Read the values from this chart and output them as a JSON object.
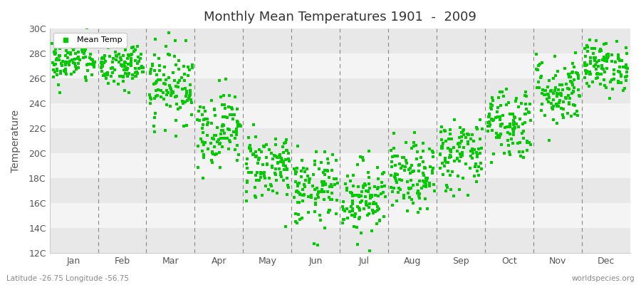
{
  "title": "Monthly Mean Temperatures 1901  -  2009",
  "ylabel": "Temperature",
  "xlabel_labels": [
    "Jan",
    "Feb",
    "Mar",
    "Apr",
    "May",
    "Jun",
    "Jul",
    "Aug",
    "Sep",
    "Oct",
    "Nov",
    "Dec"
  ],
  "ytick_labels": [
    "12C",
    "14C",
    "16C",
    "18C",
    "20C",
    "22C",
    "24C",
    "26C",
    "28C",
    "30C"
  ],
  "ytick_values": [
    12,
    14,
    16,
    18,
    20,
    22,
    24,
    26,
    28,
    30
  ],
  "ylim": [
    12,
    30
  ],
  "dot_color": "#00cc00",
  "dot_size": 7,
  "legend_label": "Mean Temp",
  "footer_left": "Latitude -26.75 Longitude -56.75",
  "footer_right": "worldspecies.org",
  "background_color": "#ffffff",
  "plot_bg_color": "#ffffff",
  "band_color_light": "#f4f4f4",
  "band_color_dark": "#e8e8e8",
  "dashed_line_color": "#888888",
  "monthly_means": [
    27.5,
    27.0,
    25.5,
    22.0,
    19.0,
    17.0,
    16.5,
    18.0,
    20.0,
    22.5,
    25.0,
    27.0
  ],
  "monthly_stds": [
    1.0,
    1.0,
    1.5,
    1.5,
    1.4,
    1.5,
    1.5,
    1.4,
    1.5,
    1.5,
    1.4,
    1.0
  ],
  "n_years": 109
}
